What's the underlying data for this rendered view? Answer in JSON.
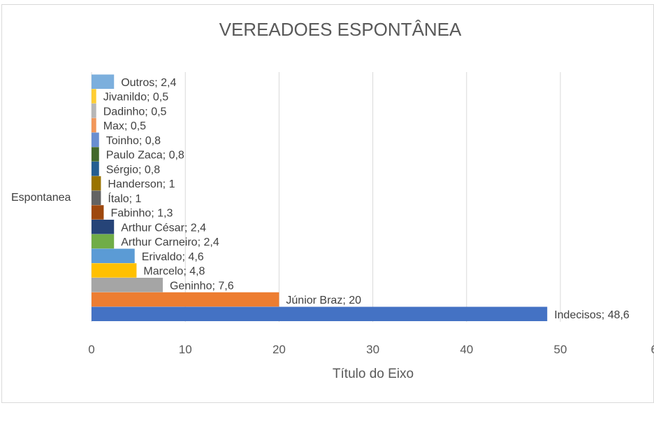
{
  "chart_data": {
    "type": "bar",
    "orientation": "horizontal",
    "title": "VEREADOES ESPONTÂNEA",
    "category": "Espontanea",
    "xlabel": "Título do Eixo",
    "ylabel": "",
    "xlim": [
      0,
      60
    ],
    "xticks": [
      "0",
      "10",
      "20",
      "30",
      "40",
      "50",
      "6"
    ],
    "grid": true,
    "series": [
      {
        "name": "Indecisos",
        "value": 48.6,
        "label": "Indecisos; 48,6",
        "color": "#4472C4"
      },
      {
        "name": "Júnior Braz",
        "value": 20,
        "label": "Júnior Braz; 20",
        "color": "#ED7D31"
      },
      {
        "name": "Geninho",
        "value": 7.6,
        "label": "Geninho; 7,6",
        "color": "#A5A5A5"
      },
      {
        "name": "Marcelo",
        "value": 4.8,
        "label": "Marcelo; 4,8",
        "color": "#FFC000"
      },
      {
        "name": "Erivaldo",
        "value": 4.6,
        "label": "Erivaldo; 4,6",
        "color": "#5B9BD5"
      },
      {
        "name": "Arthur Carneiro",
        "value": 2.4,
        "label": "Arthur Carneiro; 2,4",
        "color": "#70AD47"
      },
      {
        "name": "Arthur  César",
        "value": 2.4,
        "label": "Arthur  César; 2,4",
        "color": "#264478"
      },
      {
        "name": "Fabinho",
        "value": 1.3,
        "label": "Fabinho; 1,3",
        "color": "#9E480E"
      },
      {
        "name": "Ítalo",
        "value": 1,
        "label": "Ítalo; 1",
        "color": "#636363"
      },
      {
        "name": "Handerson",
        "value": 1,
        "label": "Handerson; 1",
        "color": "#997300"
      },
      {
        "name": "Sérgio",
        "value": 0.8,
        "label": "Sérgio; 0,8",
        "color": "#255E91"
      },
      {
        "name": "Paulo Zaca",
        "value": 0.8,
        "label": "Paulo Zaca; 0,8",
        "color": "#43682B"
      },
      {
        "name": "Toinho",
        "value": 0.8,
        "label": "Toinho; 0,8",
        "color": "#698ED0"
      },
      {
        "name": "Max",
        "value": 0.5,
        "label": "Max; 0,5",
        "color": "#F1975A"
      },
      {
        "name": "Dadinho",
        "value": 0.5,
        "label": "Dadinho; 0,5",
        "color": "#B7B7B7"
      },
      {
        "name": "Jivanildo",
        "value": 0.5,
        "label": "Jivanildo; 0,5",
        "color": "#FFCD33"
      },
      {
        "name": "Outros",
        "value": 2.4,
        "label": "Outros; 2,4",
        "color": "#7CAFDD"
      }
    ]
  }
}
